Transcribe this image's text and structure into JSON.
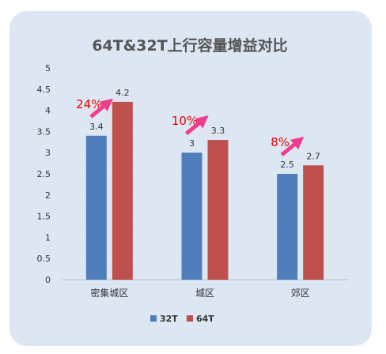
{
  "chart_data": {
    "type": "bar",
    "title": "64T&32T上行容量增益对比",
    "categories": [
      "密集城区",
      "城区",
      "郊区"
    ],
    "series": [
      {
        "name": "32T",
        "values": [
          3.4,
          3.0,
          2.5
        ],
        "labels": [
          "3.4",
          "3",
          "2.5"
        ],
        "color": "#4f7ebb"
      },
      {
        "name": "64T",
        "values": [
          4.2,
          3.3,
          2.7
        ],
        "labels": [
          "4.2",
          "3.3",
          "2.7"
        ],
        "color": "#c0504d"
      }
    ],
    "yticks": [
      "0",
      "0.5",
      "1",
      "1.5",
      "2",
      "2.5",
      "3",
      "3.5",
      "4",
      "4.5",
      "5"
    ],
    "ylim": [
      0,
      5
    ],
    "grid": true,
    "legend": "bottom",
    "annotations": [
      {
        "category": "密集城区",
        "text": "24%"
      },
      {
        "category": "城区",
        "text": "10%"
      },
      {
        "category": "郊区",
        "text": "8%"
      }
    ],
    "annotation_color": "#ee0000",
    "arrow_color": "#ee3d8c"
  }
}
